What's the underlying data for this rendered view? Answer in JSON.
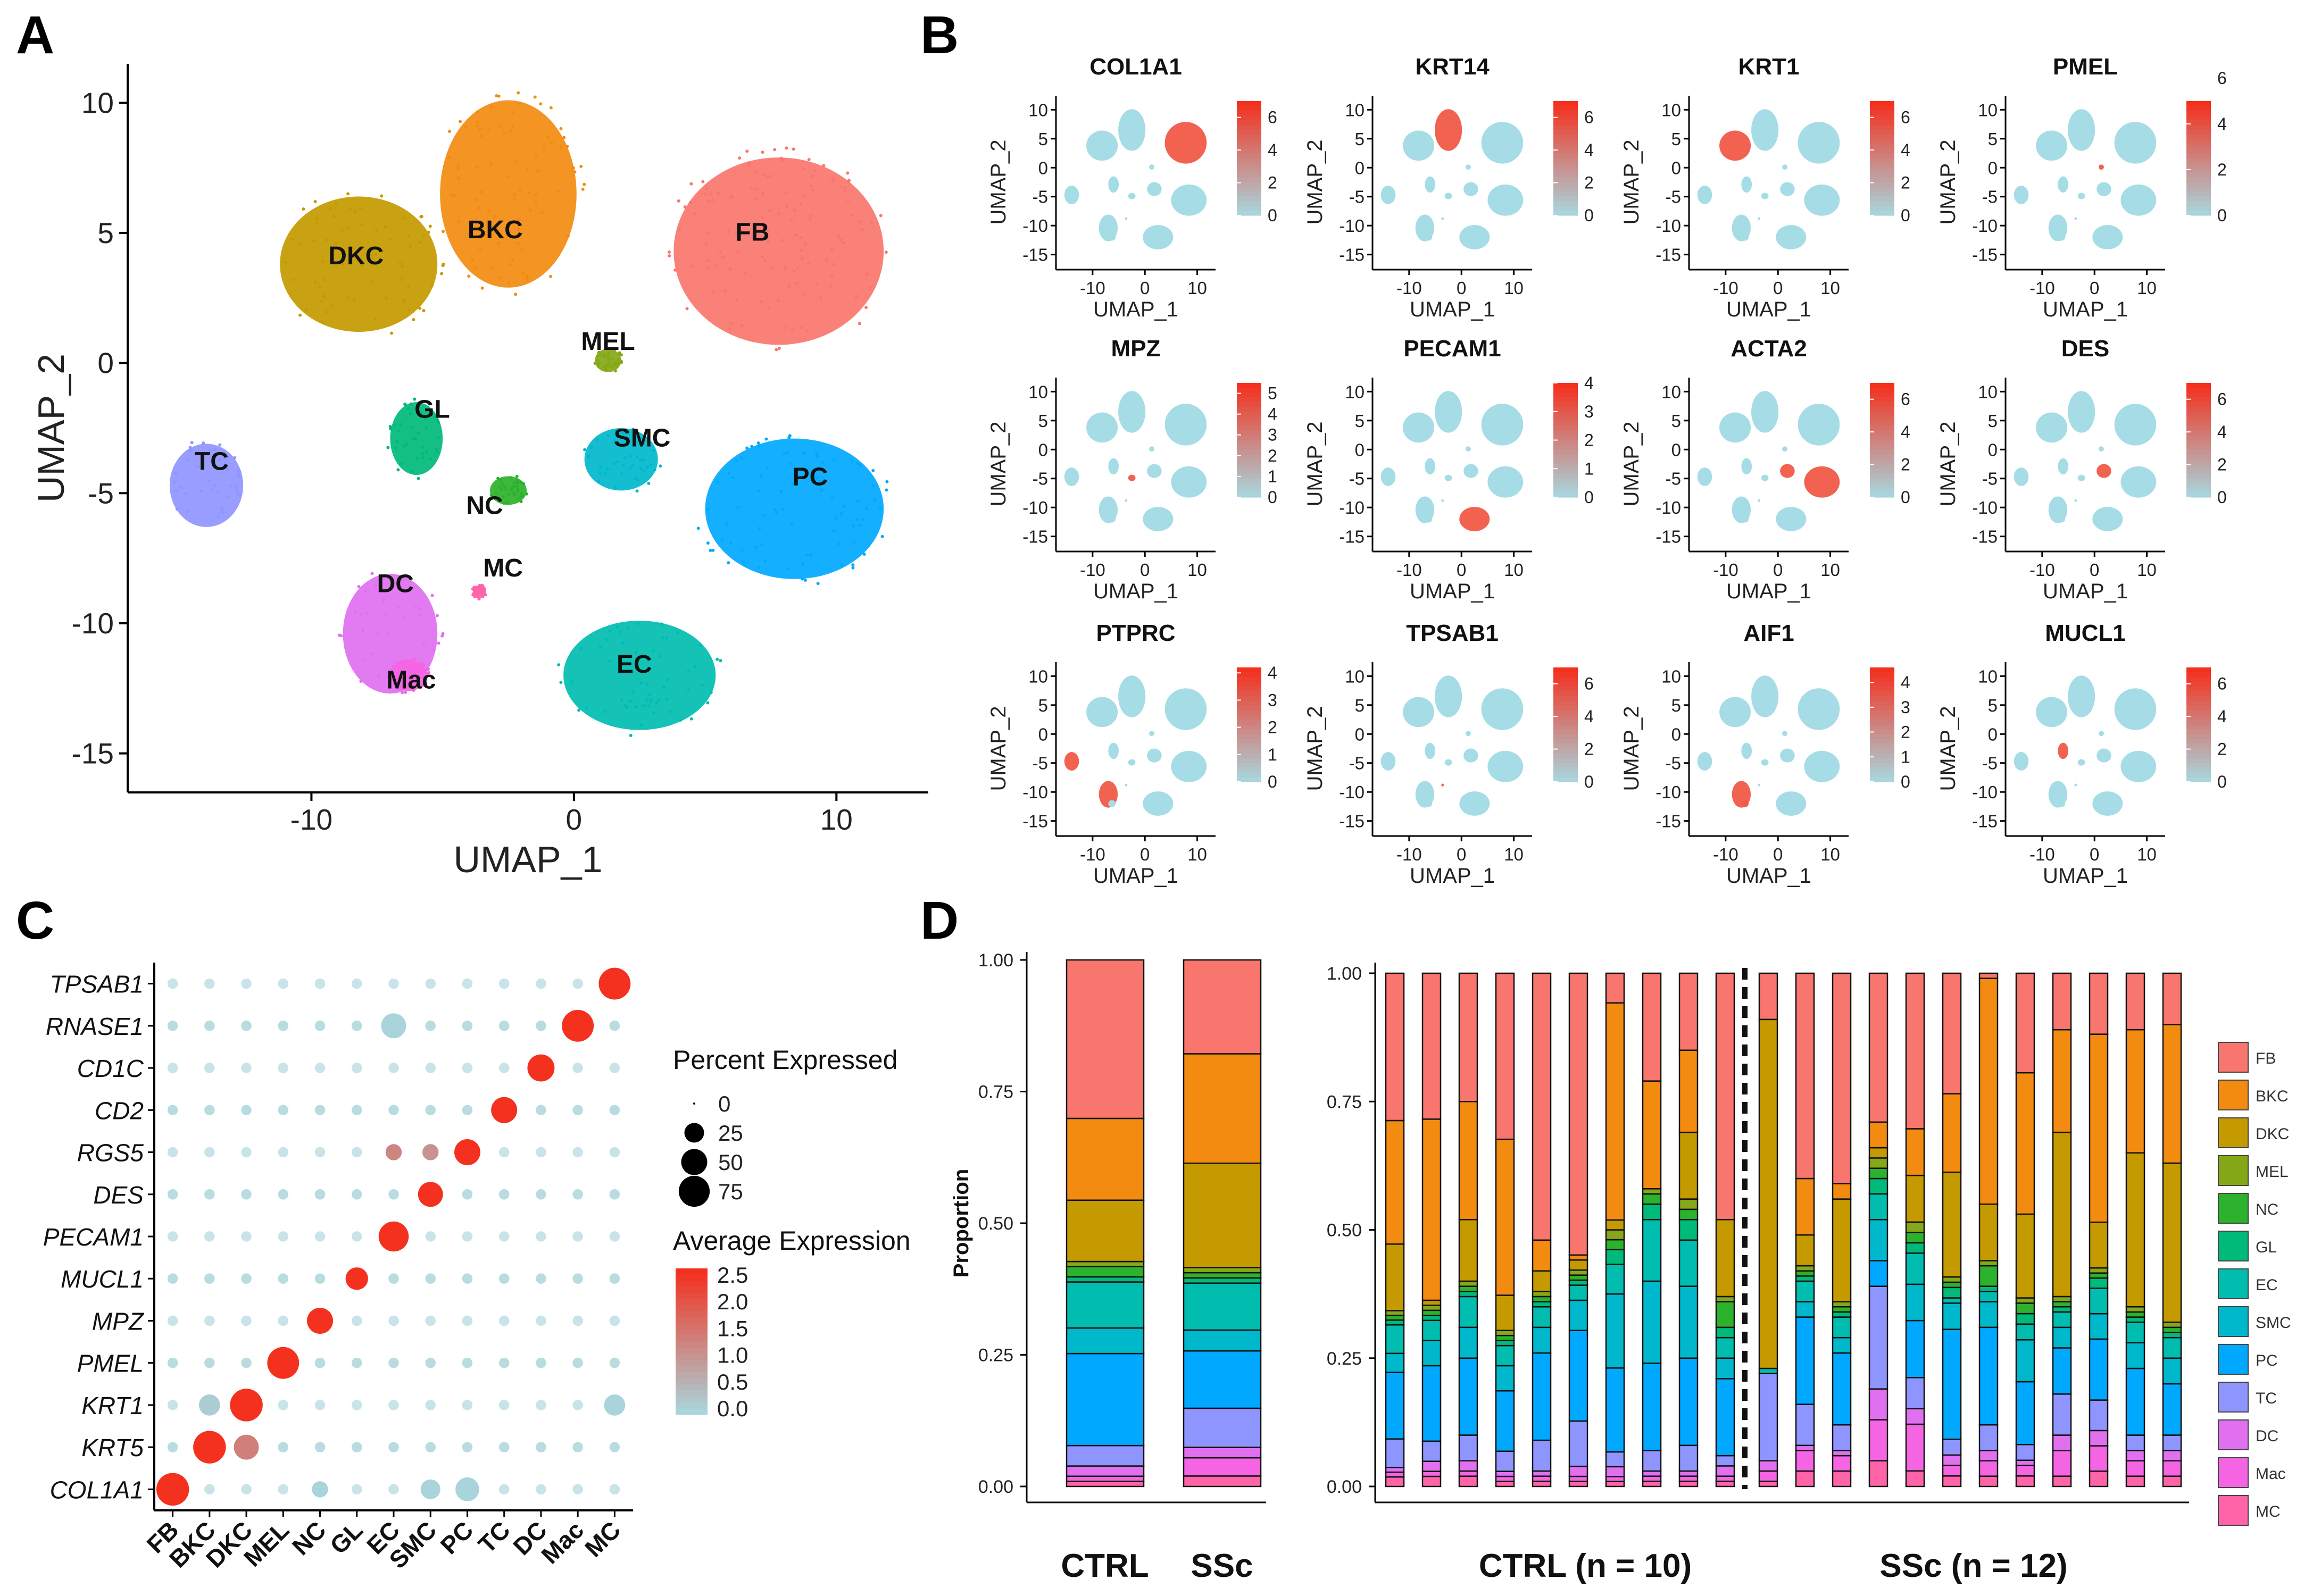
{
  "panels": {
    "a": "A",
    "b": "B",
    "c": "C",
    "d": "D"
  },
  "colors": {
    "FB": "#F8766D",
    "BKC": "#F28B10",
    "DKC": "#C49A00",
    "MEL": "#85A818",
    "NC": "#2CB22C",
    "GL": "#00BA7A",
    "EC": "#00BDB0",
    "SMC": "#00B8CC",
    "PC": "#00A9FF",
    "TC": "#8F95FF",
    "DC": "#E070F0",
    "Mac": "#F564E3",
    "MC": "#FF64A8",
    "low": "#A9D4DC",
    "high": "#F4301E",
    "feature_bg": "#A6DCE6"
  },
  "chart_data": [
    {
      "panel": "A",
      "type": "scatter",
      "title": "",
      "xlabel": "UMAP_1",
      "ylabel": "UMAP_2",
      "xlim": [
        -17,
        13.5
      ],
      "ylim": [
        -16.5,
        11.5
      ],
      "xticks": [
        -10,
        0,
        10
      ],
      "yticks": [
        -15,
        -10,
        -5,
        0,
        5,
        10
      ],
      "clusters": [
        {
          "label": "DKC",
          "x": -8.3,
          "y": 3.8,
          "cx": -8.2,
          "cy": 3.8,
          "rx": 3.0,
          "ry": 2.6
        },
        {
          "label": "BKC",
          "x": -3.0,
          "y": 4.8,
          "cx": -2.5,
          "cy": 6.5,
          "rx": 2.6,
          "ry": 3.6
        },
        {
          "label": "FB",
          "x": 6.8,
          "y": 4.7,
          "cx": 7.8,
          "cy": 4.3,
          "rx": 4.0,
          "ry": 3.6
        },
        {
          "label": "MEL",
          "x": 1.3,
          "y": 0.5,
          "cx": 1.3,
          "cy": 0.1,
          "rx": 0.5,
          "ry": 0.45
        },
        {
          "label": "GL",
          "x": -5.4,
          "y": -2.1,
          "cx": -6.0,
          "cy": -2.9,
          "rx": 1.0,
          "ry": 1.4
        },
        {
          "label": "SMC",
          "x": 2.6,
          "y": -3.2,
          "cx": 1.8,
          "cy": -3.7,
          "rx": 1.4,
          "ry": 1.2
        },
        {
          "label": "TC",
          "x": -13.8,
          "y": -4.1,
          "cx": -14.0,
          "cy": -4.7,
          "rx": 1.4,
          "ry": 1.6
        },
        {
          "label": "NC",
          "x": -3.4,
          "y": -5.8,
          "cx": -2.5,
          "cy": -4.9,
          "rx": 0.7,
          "ry": 0.55
        },
        {
          "label": "PC",
          "x": 9.0,
          "y": -4.7,
          "cx": 8.4,
          "cy": -5.6,
          "rx": 3.4,
          "ry": 2.7
        },
        {
          "label": "MC",
          "x": -2.7,
          "y": -8.2,
          "cx": -3.6,
          "cy": -8.8,
          "rx": 0.25,
          "ry": 0.25
        },
        {
          "label": "DC",
          "x": -6.8,
          "y": -8.8,
          "cx": -7.0,
          "cy": -10.4,
          "rx": 1.8,
          "ry": 2.3
        },
        {
          "label": "Mac",
          "x": -6.2,
          "y": -12.5,
          "cx": -6.3,
          "cy": -12.0,
          "rx": 0.7,
          "ry": 0.6
        },
        {
          "label": "EC",
          "x": 2.3,
          "y": -11.9,
          "cx": 2.5,
          "cy": -12.0,
          "rx": 2.9,
          "ry": 2.1
        }
      ]
    },
    {
      "panel": "B",
      "type": "scatter",
      "xlabel": "UMAP_1",
      "ylabel": "UMAP_2",
      "xticks": [
        -10,
        0,
        10
      ],
      "yticks": [
        10,
        5,
        0,
        -5,
        -10,
        -15
      ],
      "features": [
        {
          "gene": "COL1A1",
          "max": 7,
          "ticks": [
            6,
            4,
            2,
            0
          ],
          "hot": [
            "FB"
          ]
        },
        {
          "gene": "KRT14",
          "max": 7,
          "ticks": [
            6,
            4,
            2,
            0
          ],
          "hot": [
            "BKC"
          ]
        },
        {
          "gene": "KRT1",
          "max": 7,
          "ticks": [
            6,
            4,
            2,
            0
          ],
          "hot": [
            "DKC"
          ]
        },
        {
          "gene": "PMEL",
          "max": 5,
          "ticks": [
            6,
            4,
            2,
            0
          ],
          "hot": [
            "MEL"
          ]
        },
        {
          "gene": "MPZ",
          "max": 5.5,
          "ticks": [
            5,
            4,
            3,
            2,
            1,
            0
          ],
          "hot": [
            "NC"
          ]
        },
        {
          "gene": "PECAM1",
          "max": 4,
          "ticks": [
            4,
            3,
            2,
            1,
            0
          ],
          "hot": [
            "EC"
          ]
        },
        {
          "gene": "ACTA2",
          "max": 7,
          "ticks": [
            6,
            4,
            2,
            0
          ],
          "hot": [
            "PC",
            "SMC"
          ]
        },
        {
          "gene": "DES",
          "max": 7,
          "ticks": [
            6,
            4,
            2,
            0
          ],
          "hot": [
            "SMC"
          ]
        },
        {
          "gene": "PTPRC",
          "max": 4.2,
          "ticks": [
            4,
            3,
            2,
            1,
            0
          ],
          "hot": [
            "TC",
            "DC"
          ]
        },
        {
          "gene": "TPSAB1",
          "max": 7,
          "ticks": [
            6,
            4,
            2,
            0
          ],
          "hot": [
            "MC"
          ]
        },
        {
          "gene": "AIF1",
          "max": 4.6,
          "ticks": [
            4,
            3,
            2,
            1,
            0
          ],
          "hot": [
            "DC",
            "Mac"
          ]
        },
        {
          "gene": "MUCL1",
          "max": 7,
          "ticks": [
            6,
            4,
            2,
            0
          ],
          "hot": [
            "GL"
          ]
        }
      ]
    },
    {
      "panel": "C",
      "type": "dot",
      "x": [
        "FB",
        "BKC",
        "DKC",
        "MEL",
        "NC",
        "GL",
        "EC",
        "SMC",
        "PC",
        "TC",
        "DC",
        "Mac",
        "MC"
      ],
      "y": [
        "TPSAB1",
        "RNASE1",
        "CD1C",
        "CD2",
        "RGS5",
        "DES",
        "PECAM1",
        "MUCL1",
        "MPZ",
        "PMEL",
        "KRT1",
        "KRT5",
        "COL1A1"
      ],
      "highlights": [
        {
          "gene": "TPSAB1",
          "cell": "MC",
          "pct": 80,
          "avg": 2.5
        },
        {
          "gene": "RNASE1",
          "cell": "Mac",
          "pct": 80,
          "avg": 2.5
        },
        {
          "gene": "RNASE1",
          "cell": "EC",
          "pct": 45,
          "avg": 0.0
        },
        {
          "gene": "CD1C",
          "cell": "DC",
          "pct": 55,
          "avg": 2.5
        },
        {
          "gene": "CD2",
          "cell": "TC",
          "pct": 50,
          "avg": 2.5
        },
        {
          "gene": "RGS5",
          "cell": "PC",
          "pct": 50,
          "avg": 2.5
        },
        {
          "gene": "RGS5",
          "cell": "EC",
          "pct": 15,
          "avg": 1.2
        },
        {
          "gene": "RGS5",
          "cell": "SMC",
          "pct": 15,
          "avg": 1.0
        },
        {
          "gene": "DES",
          "cell": "SMC",
          "pct": 45,
          "avg": 2.5
        },
        {
          "gene": "PECAM1",
          "cell": "EC",
          "pct": 70,
          "avg": 2.5
        },
        {
          "gene": "MUCL1",
          "cell": "GL",
          "pct": 35,
          "avg": 2.5
        },
        {
          "gene": "MPZ",
          "cell": "NC",
          "pct": 50,
          "avg": 2.5
        },
        {
          "gene": "PMEL",
          "cell": "MEL",
          "pct": 80,
          "avg": 2.5
        },
        {
          "gene": "KRT1",
          "cell": "DKC",
          "pct": 85,
          "avg": 2.5
        },
        {
          "gene": "KRT1",
          "cell": "BKC",
          "pct": 30,
          "avg": 0.1
        },
        {
          "gene": "KRT1",
          "cell": "MC",
          "pct": 30,
          "avg": 0.0
        },
        {
          "gene": "KRT5",
          "cell": "BKC",
          "pct": 85,
          "avg": 2.5
        },
        {
          "gene": "KRT5",
          "cell": "DKC",
          "pct": 45,
          "avg": 1.3
        },
        {
          "gene": "COL1A1",
          "cell": "FB",
          "pct": 85,
          "avg": 2.5
        },
        {
          "gene": "COL1A1",
          "cell": "PC",
          "pct": 40,
          "avg": 0.0
        },
        {
          "gene": "COL1A1",
          "cell": "SMC",
          "pct": 25,
          "avg": 0.0
        },
        {
          "gene": "COL1A1",
          "cell": "NC",
          "pct": 15,
          "avg": 0.0
        }
      ],
      "legend_size_title": "Percent Expressed",
      "size_legend": [
        0,
        25,
        50,
        75
      ],
      "legend_color_title": "Average Expression",
      "color_legend": [
        "2.5",
        "2.0",
        "1.5",
        "1.0",
        "0.5",
        "0.0"
      ]
    },
    {
      "panel": "D",
      "type": "bar",
      "stacked": true,
      "ylabel": "Proportion",
      "yticks": [
        "1.00",
        "0.75",
        "0.50",
        "0.25",
        "0.00"
      ],
      "categories_order_bottom_to_top": [
        "MC",
        "Mac",
        "DC",
        "TC",
        "PC",
        "SMC",
        "EC",
        "GL",
        "NC",
        "MEL",
        "DKC",
        "BKC",
        "FB"
      ],
      "legend": [
        "FB",
        "BKC",
        "DKC",
        "MEL",
        "NC",
        "GL",
        "EC",
        "SMC",
        "PC",
        "TC",
        "DC",
        "Mac",
        "MC"
      ],
      "pooled": [
        {
          "name": "CTRL",
          "stack": [
            0.01,
            0.01,
            0.02,
            0.04,
            0.18,
            0.05,
            0.09,
            0.01,
            0.02,
            0.01,
            0.12,
            0.16,
            0.31
          ]
        },
        {
          "name": "SSc",
          "stack": [
            0.02,
            0.035,
            0.02,
            0.075,
            0.11,
            0.04,
            0.09,
            0.01,
            0.01,
            0.01,
            0.2,
            0.21,
            0.18
          ]
        }
      ],
      "group_labels": {
        "ctrl": "CTRL",
        "ssc": "SSc",
        "ctrl_n": "CTRL (n = 10)",
        "ssc_n": "SSc (n = 12)"
      },
      "samples": [
        {
          "group": "CTRL",
          "stack": [
            0.02,
            0.01,
            0.01,
            0.06,
            0.14,
            0.04,
            0.06,
            0.01,
            0.01,
            0.01,
            0.14,
            0.26,
            0.31
          ]
        },
        {
          "group": "CTRL",
          "stack": [
            0.02,
            0.01,
            0.02,
            0.04,
            0.15,
            0.05,
            0.04,
            0.01,
            0.01,
            0.01,
            0.01,
            0.36,
            0.29
          ]
        },
        {
          "group": "CTRL",
          "stack": [
            0.02,
            0.01,
            0.02,
            0.05,
            0.15,
            0.06,
            0.06,
            0.01,
            0.01,
            0.01,
            0.12,
            0.23,
            0.25
          ]
        },
        {
          "group": "CTRL",
          "stack": [
            0.01,
            0.01,
            0.01,
            0.04,
            0.12,
            0.05,
            0.04,
            0.01,
            0.01,
            0.01,
            0.07,
            0.31,
            0.33
          ]
        },
        {
          "group": "CTRL",
          "stack": [
            0.01,
            0.01,
            0.01,
            0.06,
            0.17,
            0.05,
            0.04,
            0.01,
            0.01,
            0.01,
            0.04,
            0.06,
            0.52
          ]
        },
        {
          "group": "CTRL",
          "stack": [
            0.01,
            0.01,
            0.02,
            0.09,
            0.18,
            0.06,
            0.03,
            0.01,
            0.01,
            0.01,
            0.02,
            0.01,
            0.56
          ]
        },
        {
          "group": "CTRL",
          "stack": [
            0.01,
            0.01,
            0.02,
            0.03,
            0.17,
            0.15,
            0.06,
            0.03,
            0.02,
            0.02,
            0.02,
            0.44,
            0.06
          ]
        },
        {
          "group": "CTRL",
          "stack": [
            0.01,
            0.01,
            0.01,
            0.04,
            0.17,
            0.16,
            0.12,
            0.03,
            0.02,
            0.01,
            0.0,
            0.21,
            0.21
          ]
        },
        {
          "group": "CTRL",
          "stack": [
            0.01,
            0.01,
            0.01,
            0.05,
            0.17,
            0.14,
            0.09,
            0.04,
            0.02,
            0.02,
            0.13,
            0.16,
            0.15
          ]
        },
        {
          "group": "CTRL",
          "stack": [
            0.01,
            0.01,
            0.02,
            0.02,
            0.15,
            0.04,
            0.04,
            0.02,
            0.05,
            0.01,
            0.15,
            0.0,
            0.48
          ]
        },
        {
          "group": "SSc",
          "stack": [
            0.01,
            0.02,
            0.02,
            0.17,
            0.0,
            0.0,
            0.01,
            0.0,
            0.0,
            0.0,
            0.68,
            0.0,
            0.09
          ]
        },
        {
          "group": "SSc",
          "stack": [
            0.03,
            0.04,
            0.01,
            0.08,
            0.17,
            0.03,
            0.04,
            0.01,
            0.01,
            0.01,
            0.06,
            0.11,
            0.4
          ]
        },
        {
          "group": "SSc",
          "stack": [
            0.03,
            0.03,
            0.01,
            0.05,
            0.14,
            0.03,
            0.04,
            0.01,
            0.01,
            0.01,
            0.2,
            0.03,
            0.41
          ]
        },
        {
          "group": "SSc",
          "stack": [
            0.05,
            0.08,
            0.06,
            0.2,
            0.05,
            0.08,
            0.05,
            0.03,
            0.02,
            0.02,
            0.02,
            0.05,
            0.29
          ]
        },
        {
          "group": "SSc",
          "stack": [
            0.03,
            0.09,
            0.03,
            0.06,
            0.11,
            0.07,
            0.06,
            0.02,
            0.02,
            0.02,
            0.09,
            0.09,
            0.3
          ]
        },
        {
          "group": "SSc",
          "stack": [
            0.02,
            0.02,
            0.02,
            0.03,
            0.21,
            0.05,
            0.01,
            0.02,
            0.01,
            0.01,
            0.2,
            0.15,
            0.23
          ]
        },
        {
          "group": "SSc",
          "stack": [
            0.02,
            0.03,
            0.02,
            0.05,
            0.19,
            0.05,
            0.02,
            0.01,
            0.04,
            0.01,
            0.11,
            0.44,
            0.01
          ]
        },
        {
          "group": "SSc",
          "stack": [
            0.02,
            0.02,
            0.01,
            0.03,
            0.12,
            0.08,
            0.03,
            0.02,
            0.02,
            0.01,
            0.16,
            0.27,
            0.19
          ]
        },
        {
          "group": "SSc",
          "stack": [
            0.02,
            0.05,
            0.03,
            0.08,
            0.09,
            0.04,
            0.03,
            0.01,
            0.01,
            0.01,
            0.32,
            0.2,
            0.11
          ]
        },
        {
          "group": "SSc",
          "stack": [
            0.03,
            0.05,
            0.03,
            0.06,
            0.12,
            0.05,
            0.05,
            0.02,
            0.01,
            0.01,
            0.09,
            0.37,
            0.12
          ]
        },
        {
          "group": "SSc",
          "stack": [
            0.02,
            0.03,
            0.02,
            0.03,
            0.13,
            0.05,
            0.04,
            0.01,
            0.01,
            0.01,
            0.3,
            0.24,
            0.11
          ]
        },
        {
          "group": "SSc",
          "stack": [
            0.02,
            0.03,
            0.02,
            0.03,
            0.1,
            0.05,
            0.04,
            0.01,
            0.01,
            0.01,
            0.31,
            0.27,
            0.1
          ]
        }
      ]
    }
  ]
}
